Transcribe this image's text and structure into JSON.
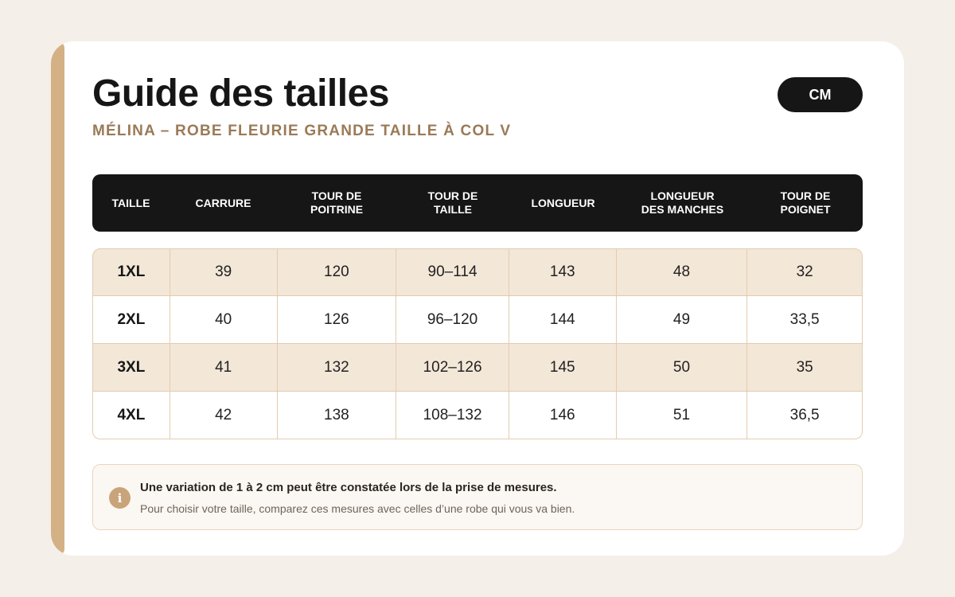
{
  "header": {
    "title": "Guide des tailles",
    "subtitle": "MÉLINA – ROBE FLEURIE GRANDE TAILLE À COL V",
    "unit_label": "CM"
  },
  "table": {
    "columns": [
      "TAILLE",
      "CARRURE",
      "TOUR DE\nPOITRINE",
      "TOUR DE\nTAILLE",
      "LONGUEUR",
      "LONGUEUR\nDES MANCHES",
      "TOUR DE\nPOIGNET"
    ],
    "rows": [
      [
        "1XL",
        "39",
        "120",
        "90–114",
        "143",
        "48",
        "32"
      ],
      [
        "2XL",
        "40",
        "126",
        "96–120",
        "144",
        "49",
        "33,5"
      ],
      [
        "3XL",
        "41",
        "132",
        "102–126",
        "145",
        "50",
        "35"
      ],
      [
        "4XL",
        "42",
        "138",
        "108–132",
        "146",
        "51",
        "36,5"
      ]
    ]
  },
  "note": {
    "icon": "info-icon",
    "icon_glyph": "i",
    "title": "Une variation de 1 à 2 cm peut être constatée lors de la prise de mesures.",
    "text": "Pour choisir votre taille, comparez ces mesures avec celles d’une robe qui vous va bien."
  },
  "colors": {
    "accent": "#d3b185",
    "header_bg": "#161616",
    "alt_row": "#f3e7d8",
    "subtitle": "#9a7a57"
  }
}
